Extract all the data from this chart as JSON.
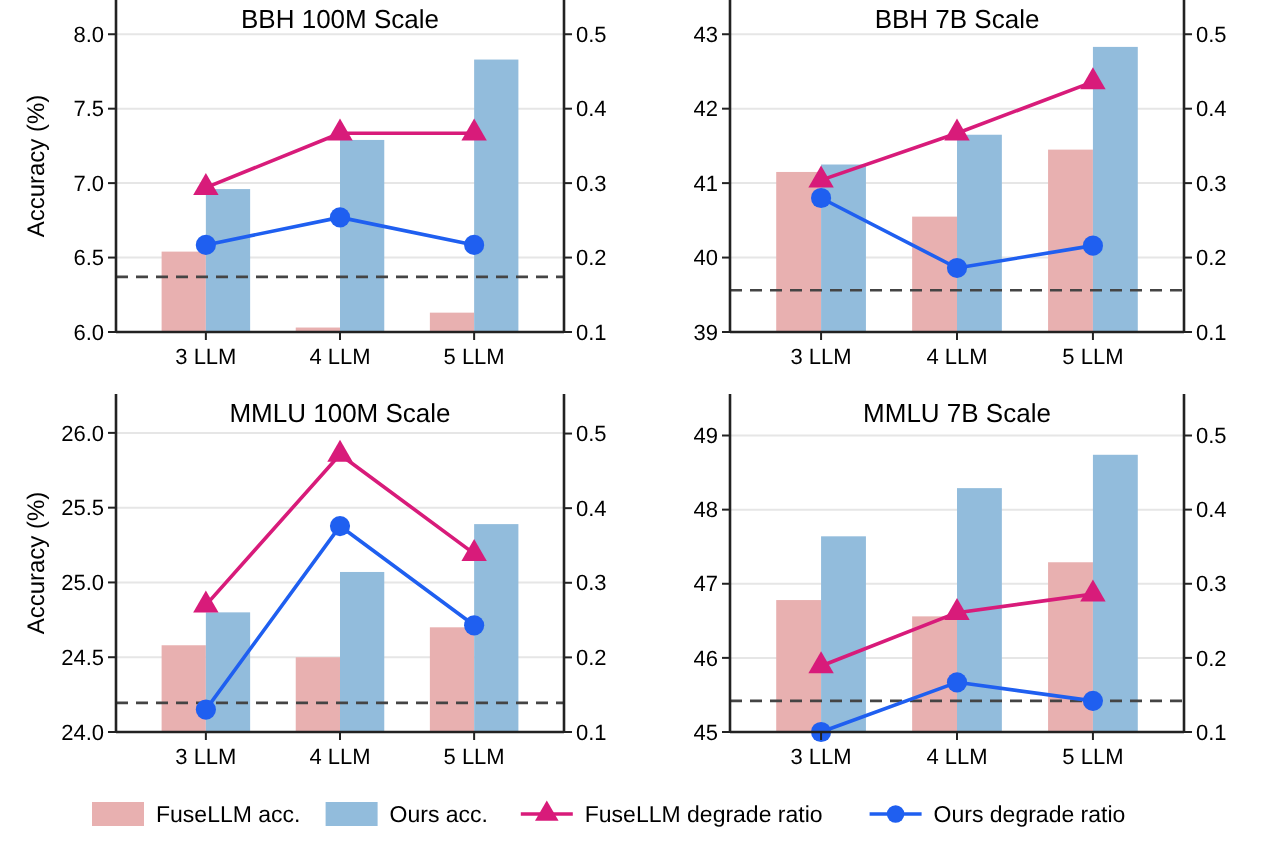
{
  "chart_data": [
    {
      "type": "bar",
      "title": "BBH 100M Scale",
      "ylabel": "Accuracy (%)",
      "categories": [
        "3 LLM",
        "4 LLM",
        "5 LLM"
      ],
      "ylim": [
        6.0,
        8.23
      ],
      "yticks": [
        {
          "value": 6,
          "label": "6.0"
        },
        6.5,
        {
          "value": 7,
          "label": "7.0"
        },
        7.5,
        {
          "value": 8,
          "label": "8.0"
        }
      ],
      "y2lim": [
        0.1,
        0.546
      ],
      "y2ticks": [
        0.1,
        0.2,
        0.3,
        0.4,
        0.5
      ],
      "grid": "y",
      "legend": "bottom",
      "series": [
        {
          "name": "FuseLLM acc.",
          "color": "#e8b0b0",
          "values": [
            6.54,
            6.03,
            6.13
          ]
        },
        {
          "name": "Ours acc.",
          "color": "#92bcdc",
          "values": [
            6.96,
            7.29,
            7.83
          ]
        },
        {
          "name": "FuseLLM degrade ratio",
          "type": "line",
          "axis": "y2",
          "marker": "triangle",
          "line_style": "solid",
          "color": "#d81b7a",
          "values": [
            0.294,
            0.367,
            0.367
          ]
        },
        {
          "name": "Ours degrade ratio",
          "type": "line",
          "axis": "y2",
          "marker": "circle",
          "line_style": "solid",
          "color": "#1f5ff0",
          "values": [
            0.217,
            0.254,
            0.217
          ]
        }
      ],
      "ref_lines": [
        {
          "axis": "y2",
          "value": 0.174,
          "color": "#444444",
          "line_style": "dashed"
        }
      ]
    },
    {
      "type": "bar",
      "title": "BBH 7B Scale",
      "categories": [
        "3 LLM",
        "4 LLM",
        "5 LLM"
      ],
      "ylim": [
        39,
        43.46
      ],
      "yticks": [
        39,
        40,
        41,
        42,
        43
      ],
      "y2lim": [
        0.1,
        0.546
      ],
      "y2ticks": [
        0.1,
        0.2,
        0.3,
        0.4,
        0.5
      ],
      "grid": "y",
      "series": [
        {
          "color": "#e8b0b0",
          "values": [
            41.15,
            40.55,
            41.45
          ]
        },
        {
          "color": "#92bcdc",
          "values": [
            41.25,
            41.65,
            42.83
          ]
        },
        {
          "type": "line",
          "axis": "y2",
          "marker": "triangle",
          "line_style": "solid",
          "color": "#d81b7a",
          "values": [
            0.304,
            0.367,
            0.436
          ]
        },
        {
          "type": "line",
          "axis": "y2",
          "marker": "circle",
          "line_style": "solid",
          "color": "#1f5ff0",
          "values": [
            0.28,
            0.186,
            0.216
          ]
        }
      ],
      "ref_lines": [
        {
          "axis": "y2",
          "value": 0.156,
          "color": "#444444",
          "line_style": "dashed"
        }
      ]
    },
    {
      "type": "bar",
      "title": "MMLU 100M Scale",
      "ylabel": "Accuracy (%)",
      "categories": [
        "3 LLM",
        "4 LLM",
        "5 LLM"
      ],
      "ylim": [
        24.0,
        26.26
      ],
      "yticks": [
        {
          "value": 24,
          "label": "24.0"
        },
        24.5,
        {
          "value": 25,
          "label": "25.0"
        },
        25.5,
        {
          "value": 26,
          "label": "26.0"
        }
      ],
      "y2lim": [
        0.1,
        0.553
      ],
      "y2ticks": [
        0.1,
        0.2,
        0.3,
        0.4,
        0.5
      ],
      "grid": "y",
      "series": [
        {
          "color": "#e8b0b0",
          "values": [
            24.58,
            24.5,
            24.7
          ]
        },
        {
          "color": "#92bcdc",
          "values": [
            24.8,
            25.07,
            25.39
          ]
        },
        {
          "type": "line",
          "axis": "y2",
          "marker": "triangle",
          "line_style": "solid",
          "color": "#d81b7a",
          "values": [
            0.27,
            0.472,
            0.339
          ]
        },
        {
          "type": "line",
          "axis": "y2",
          "marker": "circle",
          "line_style": "solid",
          "color": "#1f5ff0",
          "values": [
            0.13,
            0.376,
            0.243
          ]
        }
      ],
      "ref_lines": [
        {
          "axis": "y2",
          "value": 0.139,
          "color": "#444444",
          "line_style": "dashed"
        }
      ]
    },
    {
      "type": "bar",
      "title": "MMLU 7B Scale",
      "categories": [
        "3 LLM",
        "4 LLM",
        "5 LLM"
      ],
      "ylim": [
        45,
        49.56
      ],
      "yticks": [
        45,
        46,
        47,
        48,
        49
      ],
      "y2lim": [
        0.1,
        0.556
      ],
      "y2ticks": [
        0.1,
        0.2,
        0.3,
        0.4,
        0.5
      ],
      "grid": "y",
      "series": [
        {
          "color": "#e8b0b0",
          "values": [
            46.78,
            46.56,
            47.29
          ]
        },
        {
          "color": "#92bcdc",
          "values": [
            47.64,
            48.29,
            48.74
          ]
        },
        {
          "type": "line",
          "axis": "y2",
          "marker": "triangle",
          "line_style": "solid",
          "color": "#d81b7a",
          "values": [
            0.189,
            0.261,
            0.286
          ]
        },
        {
          "type": "line",
          "axis": "y2",
          "marker": "circle",
          "line_style": "solid",
          "color": "#1f5ff0",
          "values": [
            0.1,
            0.167,
            0.142
          ]
        }
      ],
      "ref_lines": [
        {
          "axis": "y2",
          "value": 0.142,
          "color": "#444444",
          "line_style": "dashed"
        }
      ]
    }
  ]
}
